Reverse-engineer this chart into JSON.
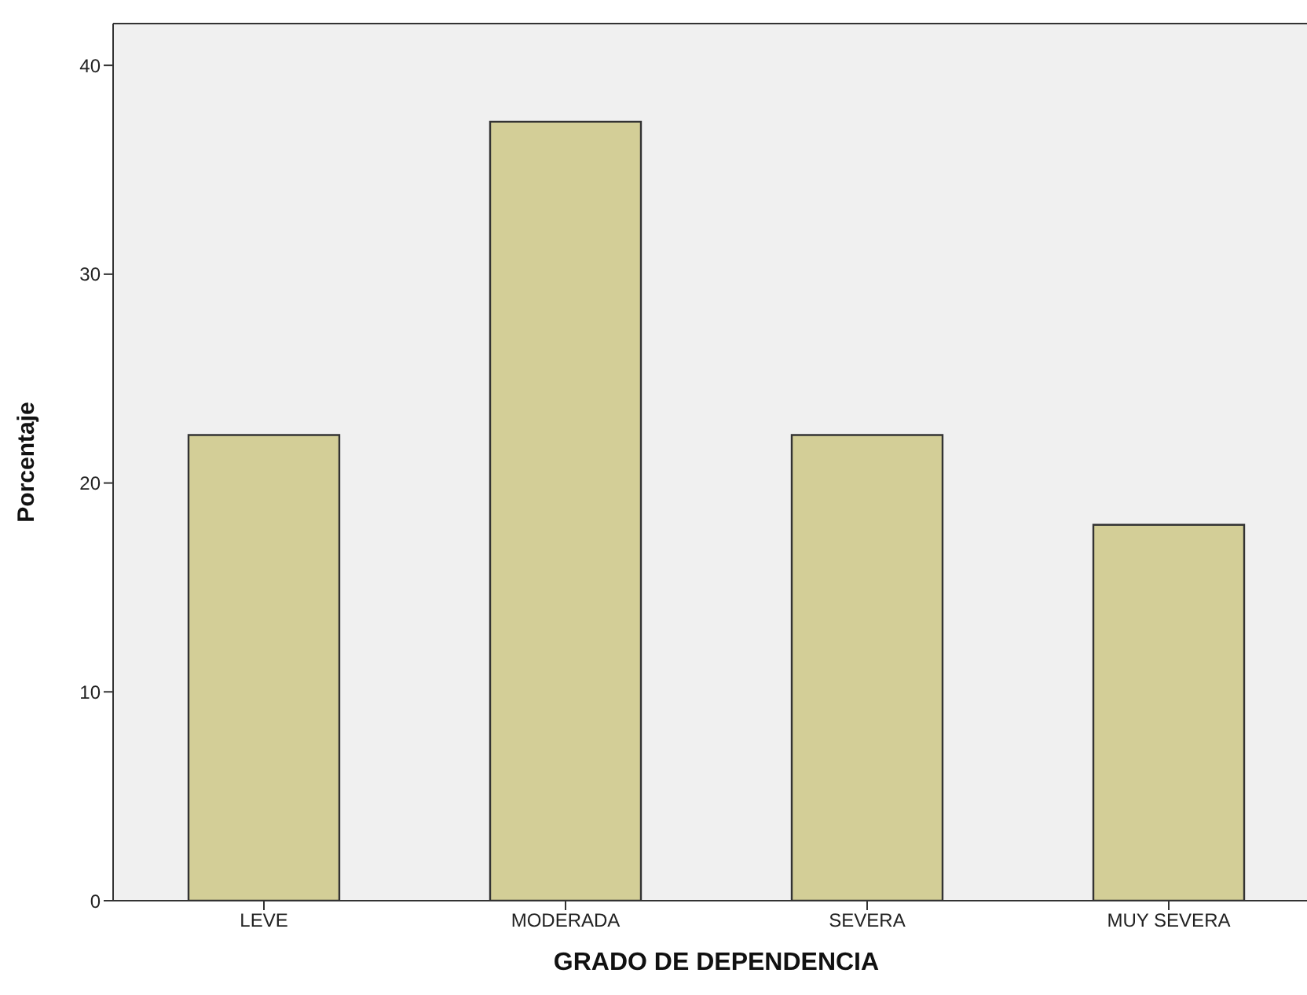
{
  "chart_data": {
    "type": "bar",
    "xlabel": "GRADO DE DEPENDENCIA",
    "ylabel": "Porcentaje",
    "categories": [
      "LEVE",
      "MODERADA",
      "SEVERA",
      "MUY SEVERA"
    ],
    "values": [
      22.3,
      37.3,
      22.3,
      18.0
    ],
    "color": "#d3ce97",
    "ylim": [
      0,
      42
    ],
    "yticks": [
      0,
      10,
      20,
      30,
      40
    ],
    "grid": false
  }
}
